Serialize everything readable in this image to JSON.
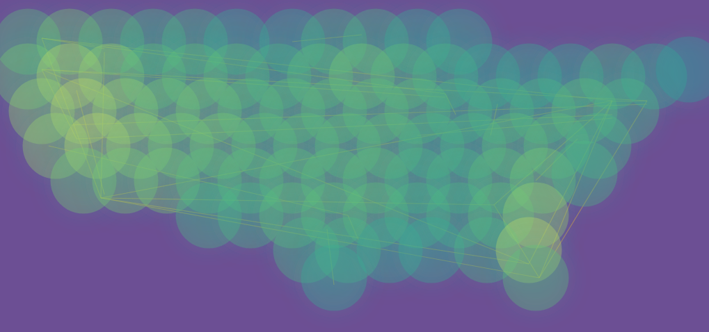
{
  "chart_data": {
    "type": "density_map",
    "xlim": [
      0,
      1019
    ],
    "ylim": [
      0,
      478
    ],
    "zlim": [
      0,
      10
    ],
    "tick_labels": false,
    "grid": false,
    "colors": [
      "#2f6f9a",
      "#2aa59a",
      "#6ccb6e",
      "#dbe85a"
    ],
    "color": "#d9a441",
    "points": [
      [
        40,
        60,
        6
      ],
      [
        100,
        60,
        7
      ],
      [
        160,
        60,
        6
      ],
      [
        220,
        60,
        5
      ],
      [
        280,
        60,
        5
      ],
      [
        340,
        60,
        4
      ],
      [
        420,
        60,
        4
      ],
      [
        480,
        60,
        5
      ],
      [
        540,
        60,
        5
      ],
      [
        600,
        60,
        4
      ],
      [
        660,
        60,
        4
      ],
      [
        40,
        110,
        7
      ],
      [
        100,
        110,
        9
      ],
      [
        160,
        110,
        8
      ],
      [
        220,
        110,
        6
      ],
      [
        280,
        110,
        6
      ],
      [
        340,
        110,
        6
      ],
      [
        400,
        110,
        5
      ],
      [
        460,
        110,
        6
      ],
      [
        520,
        110,
        7
      ],
      [
        580,
        110,
        6
      ],
      [
        640,
        110,
        5
      ],
      [
        700,
        110,
        4
      ],
      [
        760,
        110,
        4
      ],
      [
        820,
        110,
        4
      ],
      [
        880,
        110,
        5
      ],
      [
        940,
        110,
        4
      ],
      [
        990,
        100,
        3
      ],
      [
        60,
        160,
        8
      ],
      [
        120,
        160,
        9
      ],
      [
        180,
        160,
        8
      ],
      [
        240,
        160,
        7
      ],
      [
        300,
        160,
        7
      ],
      [
        360,
        160,
        6
      ],
      [
        420,
        160,
        6
      ],
      [
        480,
        160,
        6
      ],
      [
        540,
        160,
        6
      ],
      [
        600,
        160,
        6
      ],
      [
        660,
        160,
        5
      ],
      [
        720,
        160,
        5
      ],
      [
        780,
        160,
        5
      ],
      [
        840,
        160,
        6
      ],
      [
        900,
        160,
        5
      ],
      [
        80,
        210,
        8
      ],
      [
        140,
        210,
        9
      ],
      [
        200,
        210,
        8
      ],
      [
        260,
        210,
        7
      ],
      [
        320,
        210,
        7
      ],
      [
        380,
        210,
        6
      ],
      [
        440,
        210,
        6
      ],
      [
        500,
        210,
        6
      ],
      [
        560,
        210,
        6
      ],
      [
        620,
        210,
        5
      ],
      [
        680,
        210,
        5
      ],
      [
        740,
        210,
        6
      ],
      [
        800,
        210,
        6
      ],
      [
        860,
        210,
        5
      ],
      [
        120,
        260,
        7
      ],
      [
        180,
        260,
        7
      ],
      [
        240,
        260,
        7
      ],
      [
        300,
        260,
        6
      ],
      [
        360,
        260,
        6
      ],
      [
        420,
        260,
        6
      ],
      [
        480,
        260,
        6
      ],
      [
        540,
        260,
        6
      ],
      [
        600,
        260,
        5
      ],
      [
        660,
        260,
        5
      ],
      [
        720,
        260,
        6
      ],
      [
        780,
        260,
        7
      ],
      [
        840,
        250,
        5
      ],
      [
        300,
        310,
        5
      ],
      [
        360,
        310,
        5
      ],
      [
        420,
        310,
        6
      ],
      [
        480,
        310,
        6
      ],
      [
        540,
        310,
        6
      ],
      [
        600,
        310,
        5
      ],
      [
        660,
        310,
        5
      ],
      [
        720,
        310,
        6
      ],
      [
        770,
        310,
        8
      ],
      [
        440,
        360,
        5
      ],
      [
        500,
        360,
        5
      ],
      [
        560,
        360,
        4
      ],
      [
        620,
        360,
        4
      ],
      [
        700,
        360,
        5
      ],
      [
        760,
        360,
        9
      ],
      [
        480,
        400,
        4
      ],
      [
        770,
        400,
        6
      ]
    ],
    "routes": [
      [
        [
          60,
          55
        ],
        [
          880,
          145
        ]
      ],
      [
        [
          60,
          55
        ],
        [
          145,
          285
        ]
      ],
      [
        [
          60,
          100
        ],
        [
          930,
          145
        ]
      ],
      [
        [
          60,
          100
        ],
        [
          760,
          380
        ]
      ],
      [
        [
          145,
          285
        ],
        [
          775,
          400
        ]
      ],
      [
        [
          145,
          285
        ],
        [
          880,
          145
        ]
      ],
      [
        [
          60,
          55
        ],
        [
          640,
          135
        ]
      ],
      [
        [
          110,
          200
        ],
        [
          880,
          165
        ]
      ],
      [
        [
          70,
          210
        ],
        [
          500,
          310
        ]
      ],
      [
        [
          500,
          310
        ],
        [
          515,
          345
        ]
      ],
      [
        [
          150,
          75
        ],
        [
          145,
          285
        ]
      ],
      [
        [
          60,
          55
        ],
        [
          150,
          70
        ]
      ],
      [
        [
          145,
          285
        ],
        [
          710,
          295
        ]
      ],
      [
        [
          710,
          295
        ],
        [
          775,
          400
        ]
      ],
      [
        [
          710,
          295
        ],
        [
          880,
          145
        ]
      ],
      [
        [
          880,
          145
        ],
        [
          775,
          400
        ]
      ],
      [
        [
          930,
          145
        ],
        [
          775,
          400
        ]
      ],
      [
        [
          880,
          145
        ],
        [
          930,
          145
        ]
      ],
      [
        [
          640,
          135
        ],
        [
          655,
          165
        ]
      ],
      [
        [
          715,
          150
        ],
        [
          705,
          195
        ]
      ],
      [
        [
          600,
          195
        ],
        [
          880,
          170
        ]
      ],
      [
        [
          760,
          380
        ],
        [
          880,
          145
        ]
      ],
      [
        [
          60,
          100
        ],
        [
          640,
          140
        ]
      ],
      [
        [
          145,
          285
        ],
        [
          760,
          380
        ]
      ],
      [
        [
          420,
          60
        ],
        [
          520,
          50
        ]
      ],
      [
        [
          100,
          180
        ],
        [
          930,
          150
        ]
      ],
      [
        [
          480,
          410
        ],
        [
          470,
          330
        ]
      ],
      [
        [
          110,
          130
        ],
        [
          150,
          280
        ]
      ],
      [
        [
          60,
          100
        ],
        [
          110,
          200
        ]
      ],
      [
        [
          830,
          200
        ],
        [
          770,
          260
        ]
      ]
    ]
  }
}
